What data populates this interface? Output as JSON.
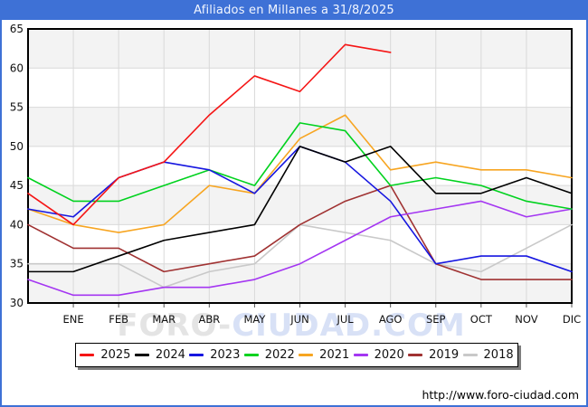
{
  "window": {
    "title": "Afiliados en Millanes a 31/8/2025"
  },
  "footer": {
    "url": "http://www.foro-ciudad.com"
  },
  "watermark": {
    "part1": "FORO-",
    "part2": "CIUDAD.COM"
  },
  "colors": {
    "frame": "#3e71d6",
    "titlebar_bg": "#3e71d6",
    "titlebar_text": "#f2f6ff",
    "plot_band": "#f3f3f3",
    "grid": "#d9d9d9",
    "axis": "#000000",
    "tick_text": "#111111",
    "watermark_gray": "#e4e4e4",
    "watermark_blue": "#d8e1f6"
  },
  "chart_data": {
    "type": "line",
    "title": "Afiliados en Millanes a 31/8/2025",
    "xlabel": "",
    "ylabel": "",
    "ylim": [
      30,
      65
    ],
    "y_ticks": [
      30,
      35,
      40,
      45,
      50,
      55,
      60,
      65
    ],
    "grid": true,
    "legend_position": "bottom",
    "x_labels": [
      "ENE",
      "FEB",
      "MAR",
      "ABR",
      "MAY",
      "JUN",
      "JUL",
      "AGO",
      "SEP",
      "OCT",
      "NOV",
      "DIC"
    ],
    "x_note": "Each series has 13 points: the first sits on the left axis (previous December value), the remaining 12 fall on the ENE..DIC gridlines. 2025 ends at AGO.",
    "series": [
      {
        "name": "2025",
        "color": "#f51515",
        "values": [
          44,
          40,
          46,
          48,
          54,
          59,
          57,
          63,
          62
        ]
      },
      {
        "name": "2024",
        "color": "#000000",
        "values": [
          34,
          34,
          36,
          38,
          39,
          40,
          50,
          48,
          50,
          44,
          44,
          46,
          44
        ]
      },
      {
        "name": "2023",
        "color": "#1616e0",
        "values": [
          42,
          41,
          46,
          48,
          47,
          44,
          50,
          48,
          43,
          35,
          36,
          36,
          34
        ]
      },
      {
        "name": "2022",
        "color": "#00d21e",
        "values": [
          46,
          43,
          43,
          45,
          47,
          45,
          53,
          52,
          45,
          46,
          45,
          43,
          42
        ]
      },
      {
        "name": "2021",
        "color": "#f7a521",
        "values": [
          42,
          40,
          39,
          40,
          45,
          44,
          51,
          54,
          47,
          48,
          47,
          47,
          46
        ]
      },
      {
        "name": "2020",
        "color": "#a436f2",
        "values": [
          33,
          31,
          31,
          32,
          32,
          33,
          35,
          38,
          41,
          42,
          43,
          41,
          42
        ]
      },
      {
        "name": "2019",
        "color": "#a03232",
        "values": [
          40,
          37,
          37,
          34,
          35,
          36,
          40,
          43,
          45,
          35,
          33,
          33,
          33
        ]
      },
      {
        "name": "2018",
        "color": "#c9c9c9",
        "values": [
          35,
          35,
          35,
          32,
          34,
          35,
          40,
          39,
          38,
          35,
          34,
          37,
          40
        ]
      }
    ]
  }
}
